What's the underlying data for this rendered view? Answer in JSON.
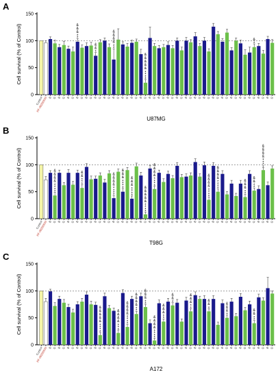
{
  "figure": {
    "ylabel": "Cell survival (% of Control)",
    "colors": {
      "control": "#f5f5a8",
      "pf": "#ffffff",
      "blue": "#1a1a8c",
      "green": "#6cc04a",
      "axis": "#000000",
      "sig": "#000000"
    },
    "x_labels": [
      "Control",
      "PF-06260933",
      "B",
      "G",
      "B",
      "G",
      "B",
      "G",
      "B",
      "G",
      "B",
      "G",
      "B",
      "G",
      "B",
      "G",
      "B",
      "G",
      "B",
      "G",
      "B",
      "G",
      "B",
      "G",
      "B",
      "G",
      "B",
      "G",
      "B",
      "G",
      "B",
      "G",
      "B",
      "G",
      "B",
      "G",
      "B",
      "G",
      "B",
      "G",
      "B",
      "G",
      "B",
      "G",
      "B",
      "G",
      "B",
      "G",
      "B",
      "G",
      "B",
      "G"
    ]
  },
  "chart_data": [
    {
      "panel": "A",
      "type": "bar",
      "title": "U87MG",
      "ylabel": "Cell survival (% of Control)",
      "ylim": [
        0,
        150
      ],
      "yticks": [
        0,
        50,
        100,
        150
      ],
      "groups": [
        "Control",
        "PF-06260933",
        "B",
        "G",
        "B",
        "G",
        "B",
        "G",
        "B",
        "G",
        "B",
        "G",
        "B",
        "G",
        "B",
        "G",
        "B",
        "G",
        "B",
        "G",
        "B",
        "G",
        "B",
        "G",
        "B",
        "G",
        "B",
        "G",
        "B",
        "G",
        "B",
        "G",
        "B",
        "G",
        "B",
        "G",
        "B",
        "G",
        "B",
        "G",
        "B",
        "G",
        "B",
        "G",
        "B",
        "G",
        "B",
        "G",
        "B",
        "G",
        "B",
        "G"
      ],
      "values": [
        100,
        96,
        103,
        95,
        88,
        92,
        85,
        80,
        98,
        87,
        90,
        91,
        72,
        97,
        100,
        88,
        65,
        102,
        93,
        89,
        96,
        98,
        75,
        22,
        105,
        90,
        86,
        88,
        92,
        86,
        100,
        82,
        100,
        97,
        108,
        90,
        100,
        80,
        126,
        112,
        98,
        115,
        82,
        100,
        95,
        74,
        78,
        88,
        90,
        76,
        103,
        96
      ],
      "errors": [
        0,
        4,
        4,
        6,
        5,
        7,
        5,
        8,
        6,
        5,
        6,
        6,
        6,
        5,
        5,
        6,
        20,
        20,
        5,
        6,
        5,
        5,
        9,
        6,
        20,
        5,
        5,
        5,
        6,
        5,
        5,
        6,
        6,
        5,
        7,
        5,
        6,
        5,
        6,
        5,
        6,
        6,
        5,
        5,
        6,
        9,
        10,
        6,
        5,
        6,
        5,
        6
      ],
      "stars": [
        0,
        0,
        0,
        0,
        0,
        0,
        0,
        0,
        2,
        0,
        0,
        0,
        1,
        0,
        0,
        0,
        2,
        0,
        0,
        0,
        0,
        0,
        0,
        4,
        0,
        0,
        0,
        0,
        0,
        0,
        0,
        0,
        0,
        0,
        0,
        0,
        0,
        0,
        0,
        0,
        0,
        0,
        0,
        0,
        0,
        0,
        0,
        1,
        0,
        0,
        0,
        0
      ],
      "amps": [
        0,
        0,
        0,
        0,
        0,
        0,
        0,
        0,
        3,
        0,
        0,
        0,
        2,
        0,
        0,
        0,
        4,
        0,
        0,
        0,
        0,
        0,
        0,
        5,
        0,
        0,
        0,
        0,
        0,
        0,
        0,
        0,
        0,
        0,
        0,
        0,
        0,
        0,
        0,
        0,
        0,
        0,
        0,
        0,
        0,
        0,
        0,
        1,
        0,
        0,
        0,
        0
      ]
    },
    {
      "panel": "B",
      "type": "bar",
      "title": "T98G",
      "ylabel": "Cell survival (% of Control)",
      "ylim": [
        0,
        150
      ],
      "yticks": [
        0,
        50,
        100,
        150
      ],
      "groups": [
        "Control",
        "PF-06260933",
        "B",
        "G",
        "B",
        "G",
        "B",
        "G",
        "B",
        "G",
        "B",
        "G",
        "B",
        "G",
        "B",
        "G",
        "B",
        "G",
        "B",
        "G",
        "B",
        "G",
        "B",
        "G",
        "B",
        "G",
        "B",
        "G",
        "B",
        "G",
        "B",
        "G",
        "B",
        "G",
        "B",
        "G",
        "B",
        "G",
        "B",
        "G",
        "B",
        "G",
        "B",
        "G",
        "B",
        "G",
        "B",
        "G",
        "B",
        "G",
        "B",
        "G"
      ],
      "values": [
        100,
        72,
        85,
        43,
        85,
        62,
        85,
        63,
        85,
        57,
        96,
        73,
        74,
        80,
        67,
        84,
        38,
        87,
        50,
        90,
        37,
        97,
        80,
        8,
        93,
        55,
        85,
        68,
        83,
        75,
        98,
        77,
        78,
        80,
        105,
        78,
        99,
        35,
        98,
        50,
        83,
        45,
        65,
        42,
        65,
        40,
        83,
        52,
        55,
        90,
        62,
        93
      ],
      "errors": [
        0,
        6,
        4,
        6,
        5,
        5,
        6,
        6,
        5,
        6,
        6,
        6,
        5,
        5,
        6,
        5,
        5,
        5,
        6,
        5,
        5,
        6,
        6,
        4,
        6,
        5,
        5,
        6,
        5,
        5,
        6,
        5,
        5,
        5,
        6,
        5,
        6,
        5,
        6,
        5,
        6,
        5,
        6,
        5,
        6,
        5,
        6,
        5,
        6,
        5,
        6,
        5
      ],
      "stars": [
        0,
        0,
        0,
        4,
        0,
        0,
        0,
        0,
        0,
        3,
        0,
        0,
        0,
        0,
        0,
        0,
        4,
        0,
        4,
        0,
        4,
        0,
        0,
        4,
        0,
        4,
        0,
        0,
        0,
        0,
        0,
        0,
        0,
        0,
        0,
        0,
        0,
        4,
        0,
        4,
        0,
        0,
        0,
        0,
        0,
        2,
        0,
        2,
        0,
        4,
        0,
        0
      ],
      "amps": [
        0,
        0,
        0,
        4,
        0,
        0,
        0,
        0,
        0,
        2,
        0,
        0,
        0,
        0,
        0,
        0,
        4,
        0,
        3,
        0,
        3,
        0,
        0,
        5,
        0,
        4,
        0,
        0,
        0,
        0,
        0,
        0,
        0,
        0,
        0,
        0,
        0,
        4,
        0,
        4,
        0,
        0,
        0,
        0,
        0,
        3,
        0,
        2,
        0,
        4,
        0,
        0
      ]
    },
    {
      "panel": "C",
      "type": "bar",
      "title": "A172",
      "ylabel": "Cell survival (% of Control)",
      "ylim": [
        0,
        150
      ],
      "yticks": [
        0,
        50,
        100,
        150
      ],
      "groups": [
        "Control",
        "PF-06260933",
        "B",
        "G",
        "B",
        "G",
        "B",
        "G",
        "B",
        "G",
        "B",
        "G",
        "B",
        "G",
        "B",
        "G",
        "B",
        "G",
        "B",
        "G",
        "B",
        "G",
        "B",
        "G",
        "B",
        "G",
        "B",
        "G",
        "B",
        "G",
        "B",
        "G",
        "B",
        "G",
        "B",
        "G",
        "B",
        "G",
        "B",
        "G",
        "B",
        "G",
        "B",
        "G",
        "B",
        "G",
        "B",
        "G",
        "B",
        "G",
        "B",
        "G"
      ],
      "values": [
        100,
        80,
        99,
        72,
        85,
        78,
        70,
        60,
        75,
        80,
        93,
        75,
        74,
        18,
        90,
        68,
        63,
        22,
        96,
        33,
        85,
        57,
        90,
        70,
        40,
        8,
        77,
        43,
        80,
        73,
        78,
        43,
        82,
        62,
        92,
        85,
        85,
        62,
        85,
        37,
        77,
        50,
        80,
        53,
        89,
        64,
        75,
        40,
        88,
        82,
        105,
        95
      ],
      "errors": [
        0,
        6,
        4,
        6,
        5,
        6,
        5,
        6,
        5,
        6,
        5,
        6,
        5,
        5,
        6,
        5,
        5,
        5,
        6,
        5,
        5,
        5,
        6,
        5,
        6,
        4,
        6,
        5,
        6,
        5,
        6,
        5,
        6,
        5,
        6,
        5,
        6,
        5,
        6,
        5,
        6,
        5,
        6,
        5,
        6,
        5,
        6,
        5,
        6,
        5,
        20,
        5
      ],
      "stars": [
        0,
        0,
        0,
        0,
        0,
        0,
        0,
        0,
        0,
        0,
        0,
        0,
        0,
        4,
        0,
        0,
        0,
        3,
        0,
        4,
        0,
        2,
        0,
        2,
        0,
        4,
        0,
        2,
        0,
        1,
        0,
        0,
        0,
        2,
        0,
        0,
        0,
        1,
        0,
        0,
        0,
        1,
        0,
        0,
        0,
        0,
        0,
        2,
        0,
        0,
        0,
        0
      ],
      "amps": [
        0,
        0,
        0,
        0,
        0,
        0,
        0,
        0,
        0,
        0,
        0,
        0,
        0,
        5,
        0,
        0,
        0,
        4,
        0,
        4,
        0,
        4,
        0,
        3,
        0,
        4,
        0,
        3,
        0,
        2,
        0,
        0,
        0,
        3,
        0,
        0,
        0,
        2,
        0,
        0,
        0,
        3,
        0,
        0,
        0,
        0,
        0,
        2,
        0,
        0,
        0,
        0
      ]
    }
  ]
}
